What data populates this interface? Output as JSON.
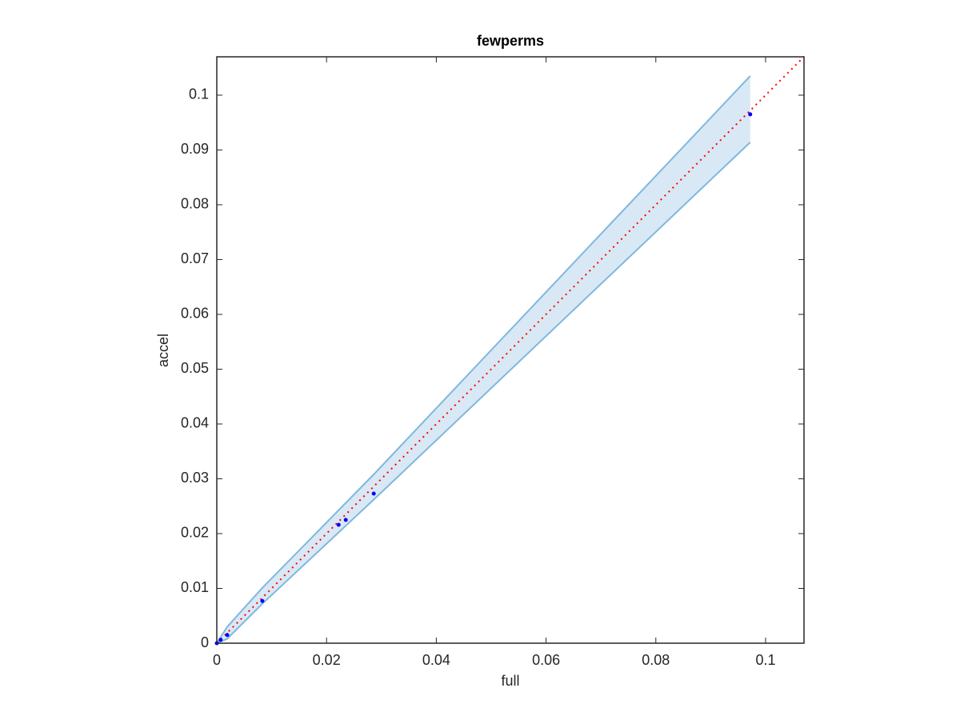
{
  "chart_data": {
    "type": "scatter",
    "title": "fewperms",
    "x_label": "full",
    "y_label": "accel",
    "xlim": [
      0,
      0.107
    ],
    "ylim": [
      0,
      0.107
    ],
    "xticks": [
      0,
      0.02,
      0.04,
      0.06,
      0.08,
      0.1
    ],
    "yticks": [
      0,
      0.01,
      0.02,
      0.03,
      0.04,
      0.05,
      0.06,
      0.07,
      0.08,
      0.09,
      0.1
    ],
    "points": {
      "x": [
        0,
        0.0007,
        0.0019,
        0.0083,
        0.0222,
        0.0235,
        0.0286,
        0.0972
      ],
      "y": [
        0,
        0.0006,
        0.0015,
        0.0077,
        0.0216,
        0.0225,
        0.0273,
        0.0965
      ],
      "color": "#0000ff"
    },
    "band": {
      "x": [
        0,
        0.0019,
        0.0083,
        0.0286,
        0.0972
      ],
      "lower": [
        0,
        0.0008,
        0.0072,
        0.0262,
        0.0914
      ],
      "upper": [
        0,
        0.003,
        0.0101,
        0.0308,
        0.1035
      ],
      "color": "#7fb8dd",
      "fill": "#d9e8f5"
    },
    "reference": {
      "x": [
        0,
        0.107
      ],
      "y": [
        0,
        0.107
      ],
      "color": "#ff0000"
    }
  }
}
